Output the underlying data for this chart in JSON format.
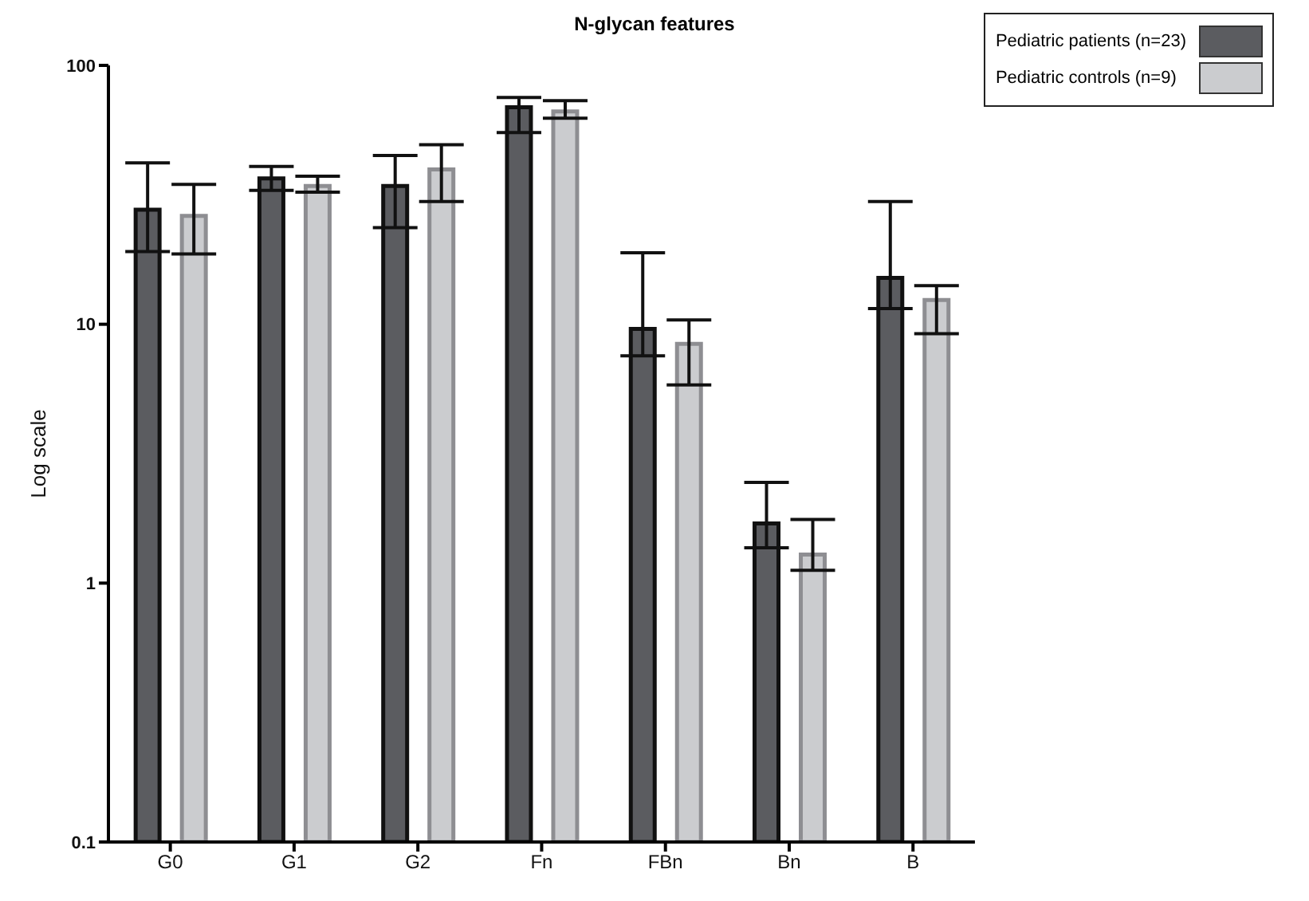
{
  "chart_data": {
    "type": "bar",
    "title": "N-glycan features",
    "ylabel": "Log scale",
    "categories": [
      "G0",
      "G1",
      "G2",
      "Fn",
      "FBn",
      "Bn",
      "B"
    ],
    "series": [
      {
        "name": "Pediatric patients (n=23)",
        "color": "#5b5c60",
        "values": [
          27.7,
          36.6,
          34.2,
          68.9,
          9.6,
          1.7,
          15.1
        ],
        "errors": [
          [
            19.1,
            42
          ],
          [
            32.9,
            40.7
          ],
          [
            23.6,
            44.9
          ],
          [
            55,
            75.2
          ],
          [
            7.55,
            18.9
          ],
          [
            1.37,
            2.45
          ],
          [
            11.5,
            29.8
          ]
        ]
      },
      {
        "name": "Pediatric controls (n=9)",
        "color": "#cbcccf",
        "values": [
          26.2,
          34.2,
          39.6,
          66.4,
          8.4,
          1.29,
          12.4
        ],
        "errors": [
          [
            18.7,
            34.7
          ],
          [
            32.4,
            37.3
          ],
          [
            29.8,
            49.4
          ],
          [
            62.5,
            73.1
          ],
          [
            5.83,
            10.4
          ],
          [
            1.12,
            1.76
          ],
          [
            9.2,
            14.1
          ]
        ]
      }
    ],
    "log": true,
    "ylim": [
      0.1,
      100
    ],
    "yticks": [
      0.1,
      1,
      10,
      100
    ],
    "grid": false,
    "legend": "top right"
  }
}
